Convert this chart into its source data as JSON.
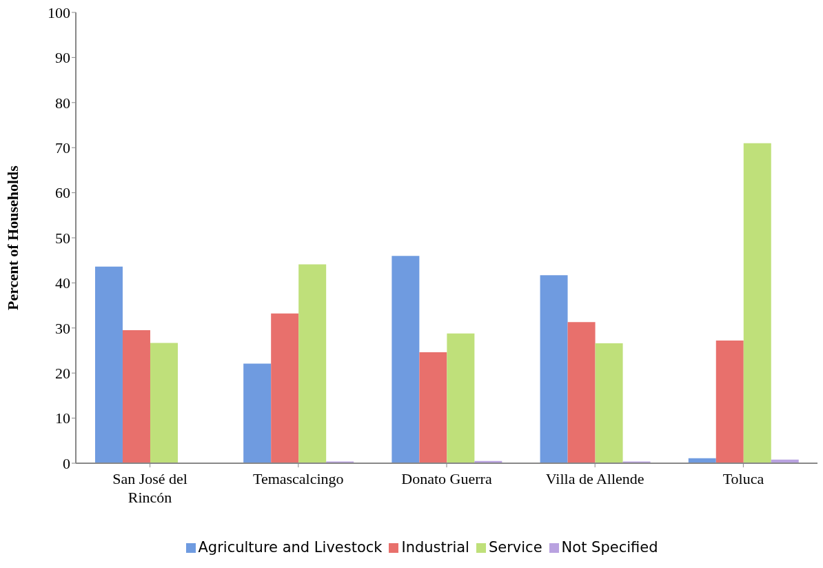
{
  "chart_data": {
    "type": "bar",
    "ylabel": "Percent of Households",
    "categories": [
      "San José del Rincón",
      "Temascalcingo",
      "Donato Guerra",
      "Villa de Allende",
      "Toluca"
    ],
    "series": [
      {
        "name": "Agriculture and Livestock",
        "color": "#6f9be0",
        "values": [
          43.6,
          22.1,
          46.0,
          41.7,
          1.1
        ]
      },
      {
        "name": "Industrial",
        "color": "#e8706c",
        "values": [
          29.5,
          33.2,
          24.6,
          31.3,
          27.2
        ]
      },
      {
        "name": "Service",
        "color": "#bfe07a",
        "values": [
          26.7,
          44.1,
          28.8,
          26.6,
          71.0
        ]
      },
      {
        "name": "Not Specified",
        "color": "#b9a2e0",
        "values": [
          0,
          0.4,
          0.5,
          0.4,
          0.8
        ]
      }
    ],
    "ylim": [
      0,
      100
    ],
    "yticks": [
      0,
      10,
      20,
      30,
      40,
      50,
      60,
      70,
      80,
      90,
      100
    ],
    "grid": false,
    "legend": "bottom"
  }
}
